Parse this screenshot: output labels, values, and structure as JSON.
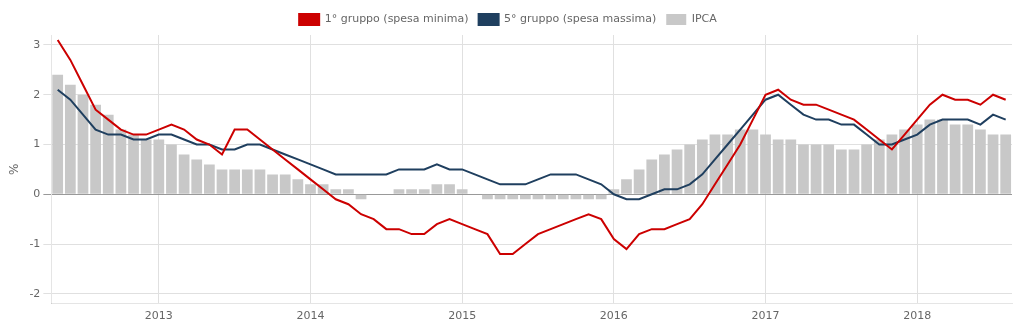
{
  "chart_data": {
    "type": "bar",
    "ylabel": "%",
    "categories": [
      null,
      null,
      null,
      null,
      null,
      null,
      null,
      null,
      "2013",
      null,
      null,
      null,
      null,
      null,
      null,
      null,
      null,
      null,
      null,
      null,
      "2014",
      null,
      null,
      null,
      null,
      null,
      null,
      null,
      null,
      null,
      null,
      null,
      "2015",
      null,
      null,
      null,
      null,
      null,
      null,
      null,
      null,
      null,
      null,
      null,
      "2016",
      null,
      null,
      null,
      null,
      null,
      null,
      null,
      null,
      null,
      null,
      null,
      "2017",
      null,
      null,
      null,
      null,
      null,
      null,
      null,
      null,
      null,
      null,
      null,
      "2018",
      null,
      null,
      null,
      null,
      null,
      null,
      null
    ],
    "series": [
      {
        "name": "IPCA",
        "type": "bar",
        "color": "#c8c8c8",
        "values": [
          2.4,
          2.2,
          2.0,
          1.8,
          1.6,
          1.3,
          1.2,
          1.1,
          1.1,
          1.0,
          0.8,
          0.7,
          0.6,
          0.5,
          0.5,
          0.5,
          0.5,
          0.4,
          0.4,
          0.3,
          0.2,
          0.2,
          0.1,
          0.1,
          -0.1,
          0.0,
          0.0,
          0.1,
          0.1,
          0.1,
          0.2,
          0.2,
          0.1,
          0.0,
          -0.1,
          -0.1,
          -0.1,
          -0.1,
          -0.1,
          -0.1,
          -0.1,
          -0.1,
          -0.1,
          -0.1,
          0.1,
          0.3,
          0.5,
          0.7,
          0.8,
          0.9,
          1.0,
          1.1,
          1.2,
          1.2,
          1.3,
          1.3,
          1.2,
          1.1,
          1.1,
          1.0,
          1.0,
          1.0,
          0.9,
          0.9,
          1.0,
          1.1,
          1.2,
          1.3,
          1.4,
          1.5,
          1.5,
          1.4,
          1.4,
          1.3,
          1.2,
          1.2
        ]
      },
      {
        "name": "1° gruppo (spesa minima)",
        "type": "line",
        "color": "#cc0000",
        "values": [
          3.1,
          2.7,
          2.2,
          1.7,
          1.5,
          1.3,
          1.2,
          1.2,
          1.3,
          1.4,
          1.3,
          1.1,
          1.0,
          0.8,
          1.3,
          1.3,
          1.1,
          0.9,
          0.7,
          0.5,
          0.3,
          0.1,
          -0.1,
          -0.2,
          -0.4,
          -0.5,
          -0.7,
          -0.7,
          -0.8,
          -0.8,
          -0.6,
          -0.5,
          -0.6,
          -0.7,
          -0.8,
          -1.2,
          -1.2,
          -1.0,
          -0.8,
          -0.7,
          -0.6,
          -0.5,
          -0.4,
          -0.5,
          -0.9,
          -1.1,
          -0.8,
          -0.7,
          -0.7,
          -0.6,
          -0.5,
          -0.2,
          0.2,
          0.6,
          1.0,
          1.5,
          2.0,
          2.1,
          1.9,
          1.8,
          1.8,
          1.7,
          1.6,
          1.5,
          1.3,
          1.1,
          0.9,
          1.2,
          1.5,
          1.8,
          2.0,
          1.9,
          1.9,
          1.8,
          2.0,
          1.9
        ]
      },
      {
        "name": "5° gruppo (spesa massima)",
        "type": "line",
        "color": "#1f3f5f",
        "values": [
          2.1,
          1.9,
          1.6,
          1.3,
          1.2,
          1.2,
          1.1,
          1.1,
          1.2,
          1.2,
          1.1,
          1.0,
          1.0,
          0.9,
          0.9,
          1.0,
          1.0,
          0.9,
          0.8,
          0.7,
          0.6,
          0.5,
          0.4,
          0.4,
          0.4,
          0.4,
          0.4,
          0.5,
          0.5,
          0.5,
          0.6,
          0.5,
          0.5,
          0.4,
          0.3,
          0.2,
          0.2,
          0.2,
          0.3,
          0.4,
          0.4,
          0.4,
          0.3,
          0.2,
          0.0,
          -0.1,
          -0.1,
          0.0,
          0.1,
          0.1,
          0.2,
          0.4,
          0.7,
          1.0,
          1.3,
          1.6,
          1.9,
          2.0,
          1.8,
          1.6,
          1.5,
          1.5,
          1.4,
          1.4,
          1.2,
          1.0,
          1.0,
          1.1,
          1.2,
          1.4,
          1.5,
          1.5,
          1.5,
          1.4,
          1.6,
          1.5
        ]
      }
    ],
    "ylim": [
      -2.2,
      3.2
    ],
    "yticks": [
      -2,
      -1,
      0,
      1,
      2,
      3
    ],
    "grid": true,
    "legend": "top"
  }
}
